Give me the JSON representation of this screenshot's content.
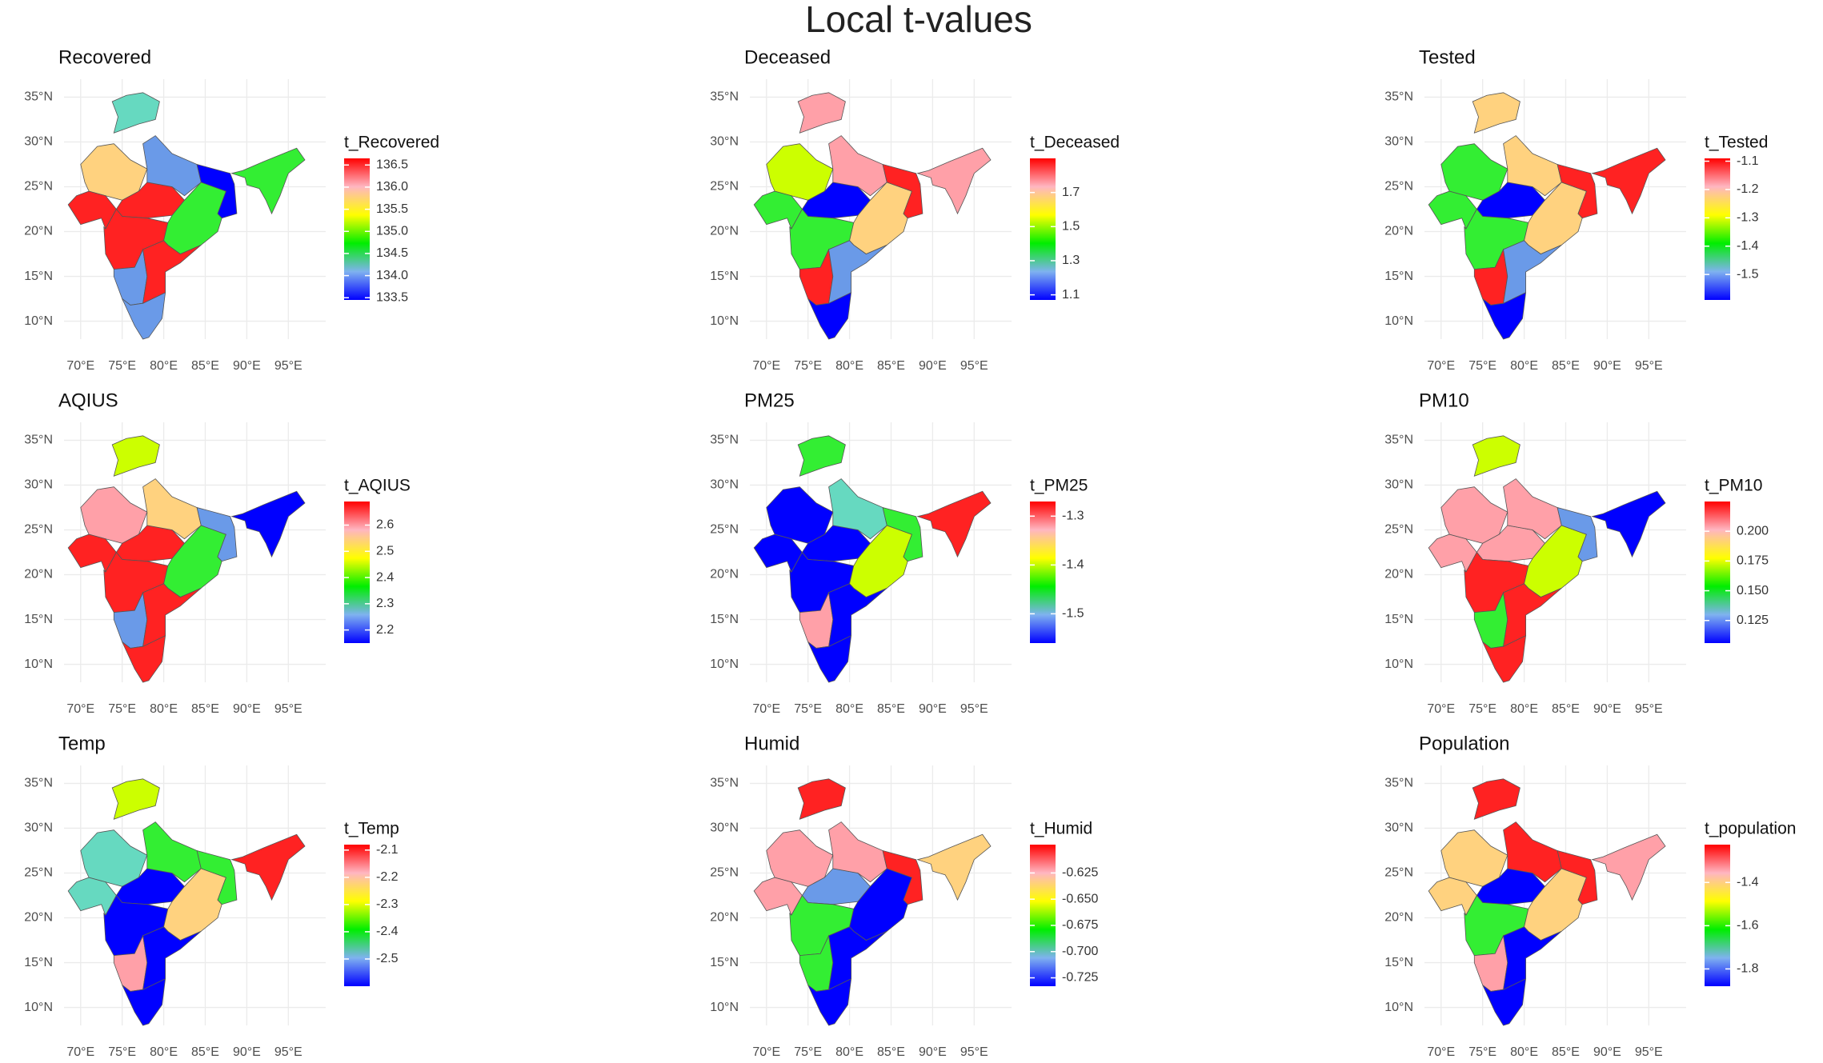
{
  "title": "Local t-values",
  "map_axes": {
    "xlim": [
      68,
      99.5
    ],
    "ylim": [
      8,
      37
    ],
    "xticks": [
      {
        "value": 70,
        "label": "70°E"
      },
      {
        "value": 75,
        "label": "75°E"
      },
      {
        "value": 80,
        "label": "80°E"
      },
      {
        "value": 85,
        "label": "85°E"
      },
      {
        "value": 90,
        "label": "90°E"
      },
      {
        "value": 95,
        "label": "95°E"
      }
    ],
    "yticks": [
      {
        "value": 10,
        "label": "10°N"
      },
      {
        "value": 15,
        "label": "15°N"
      },
      {
        "value": 20,
        "label": "20°N"
      },
      {
        "value": 25,
        "label": "25°N"
      },
      {
        "value": 30,
        "label": "30°N"
      },
      {
        "value": 35,
        "label": "35°N"
      }
    ]
  },
  "panels": [
    {
      "title": "Recovered",
      "legend_title": "t_Recovered",
      "clim": [
        133.45,
        136.65
      ],
      "legend_ticks": [
        136.5,
        {
          "value": 136,
          "label": "136.0"
        },
        135.5,
        {
          "value": 135,
          "label": "135.0"
        },
        134.5,
        {
          "value": 134,
          "label": "134.0"
        },
        133.5
      ]
    },
    {
      "title": "Deceased",
      "legend_title": "t_Deceased",
      "clim": [
        1.07,
        1.9
      ],
      "legend_ticks": [
        1.7,
        1.5,
        1.3,
        1.1
      ]
    },
    {
      "title": "Tested",
      "legend_title": "t_Tested",
      "clim": [
        -1.59,
        -1.09
      ],
      "legend_ticks": [
        -1.1,
        -1.2,
        -1.3,
        -1.4,
        -1.5
      ]
    },
    {
      "title": "AQIUS",
      "legend_title": "t_AQIUS",
      "clim": [
        2.15,
        2.69
      ],
      "legend_ticks": [
        2.6,
        2.5,
        2.4,
        2.3,
        2.2
      ]
    },
    {
      "title": "PM25",
      "legend_title": "t_PM25",
      "clim": [
        -1.56,
        -1.27
      ],
      "legend_ticks": [
        -1.3,
        -1.4,
        -1.5
      ]
    },
    {
      "title": "PM10",
      "legend_title": "t_PM10",
      "clim": [
        0.106,
        0.225
      ],
      "legend_ticks": [
        {
          "value": 0.2,
          "label": "0.200"
        },
        0.175,
        {
          "value": 0.15,
          "label": "0.150"
        },
        0.125
      ]
    },
    {
      "title": "Temp",
      "legend_title": "t_Temp",
      "clim": [
        -2.6,
        -2.08
      ],
      "legend_ticks": [
        -2.1,
        -2.2,
        -2.3,
        -2.4,
        -2.5
      ]
    },
    {
      "title": "Humid",
      "legend_title": "t_Humid",
      "clim": [
        -0.733,
        -0.598
      ],
      "legend_ticks": [
        -0.625,
        {
          "value": -0.65,
          "label": "-0.650"
        },
        -0.675,
        {
          "value": -0.7,
          "label": "-0.700"
        },
        -0.725
      ]
    },
    {
      "title": "Population",
      "legend_title": "t_population",
      "clim": [
        -1.88,
        -1.225
      ],
      "legend_ticks": [
        -1.4,
        -1.6,
        -1.8
      ]
    }
  ]
}
